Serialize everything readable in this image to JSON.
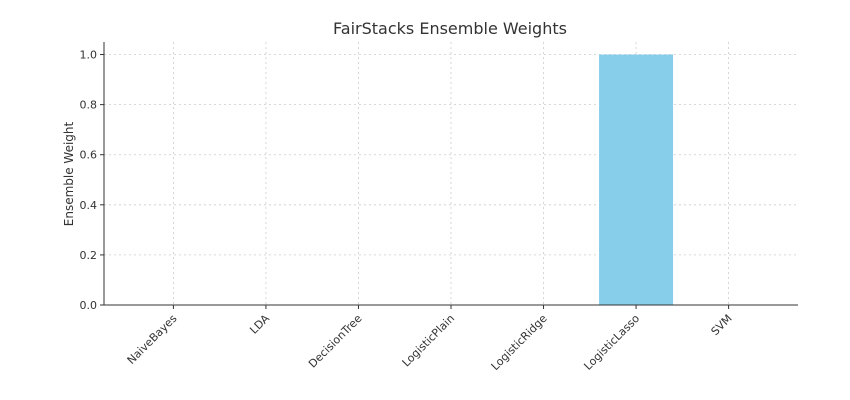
{
  "chart_data": {
    "type": "bar",
    "title": "FairStacks Ensemble Weights",
    "xlabel": "",
    "ylabel": "Ensemble Weight",
    "categories": [
      "NaiveBayes",
      "LDA",
      "DecisionTree",
      "LogisticPlain",
      "LogisticRidge",
      "LogisticLasso",
      "SVM"
    ],
    "values": [
      0.0,
      0.0,
      0.0,
      0.0,
      0.0,
      1.0,
      0.0
    ],
    "ylim": [
      0,
      1.05
    ],
    "yticks": [
      "0.0",
      "0.2",
      "0.4",
      "0.6",
      "0.8",
      "1.0"
    ],
    "bar_color": "#87ceeb",
    "grid": true
  }
}
